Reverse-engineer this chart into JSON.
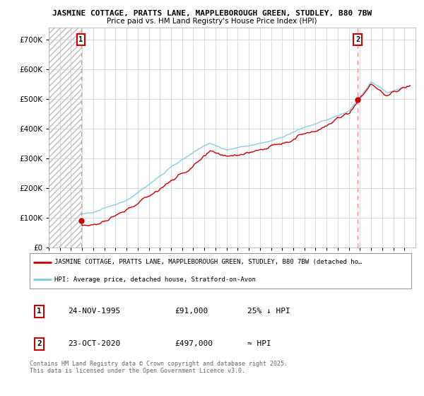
{
  "title_line1": "JASMINE COTTAGE, PRATTS LANE, MAPPLEBOROUGH GREEN, STUDLEY, B80 7BW",
  "title_line2": "Price paid vs. HM Land Registry's House Price Index (HPI)",
  "yticks": [
    0,
    100000,
    200000,
    300000,
    400000,
    500000,
    600000,
    700000
  ],
  "ytick_labels": [
    "£0",
    "£100K",
    "£200K",
    "£300K",
    "£400K",
    "£500K",
    "£600K",
    "£700K"
  ],
  "xlim_start": 1993.0,
  "xlim_end": 2026.0,
  "ylim": [
    0,
    740000
  ],
  "hpi_color": "#7ec8e3",
  "price_color": "#cc0000",
  "marker1_date": 1995.9,
  "marker1_price": 91000,
  "marker2_date": 2020.8,
  "marker2_price": 497000,
  "legend_line1": "JASMINE COTTAGE, PRATTS LANE, MAPPLEBOROUGH GREEN, STUDLEY, B80 7BW (detached ho…",
  "legend_line2": "HPI: Average price, detached house, Stratford-on-Avon",
  "table_row1": [
    "1",
    "24-NOV-1995",
    "£91,000",
    "25% ↓ HPI"
  ],
  "table_row2": [
    "2",
    "23-OCT-2020",
    "£497,000",
    "≈ HPI"
  ],
  "footnote": "Contains HM Land Registry data © Crown copyright and database right 2025.\nThis data is licensed under the Open Government Licence v3.0.",
  "grid_color": "#cccccc",
  "dashed_line_color": "#ff8888",
  "hatch_end": 1995.9
}
